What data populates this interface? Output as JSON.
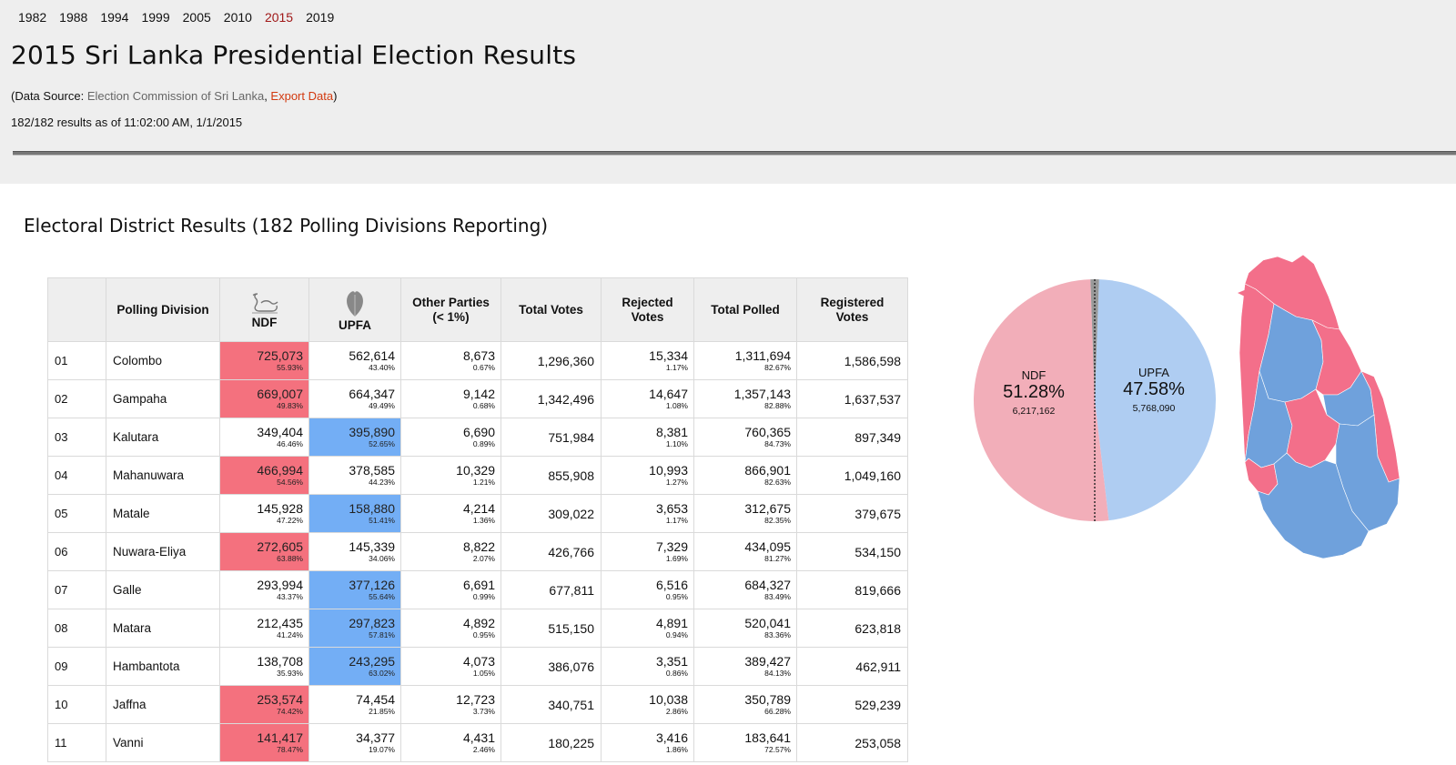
{
  "years": [
    {
      "label": "1982",
      "active": false
    },
    {
      "label": "1988",
      "active": false
    },
    {
      "label": "1994",
      "active": false
    },
    {
      "label": "1999",
      "active": false
    },
    {
      "label": "2005",
      "active": false
    },
    {
      "label": "2010",
      "active": false
    },
    {
      "label": "2015",
      "active": true
    },
    {
      "label": "2019",
      "active": false
    }
  ],
  "header": {
    "title": "2015 Sri Lanka Presidential Election Results",
    "source_prefix": "(Data Source: ",
    "source_link": "Election Commission of Sri Lanka",
    "source_sep": ", ",
    "export_link": "Export Data",
    "source_suffix": ")",
    "status": "182/182 results as of 11:02:00 AM, 1/1/2015"
  },
  "section_title": "Electoral District Results (182 Polling Divisions Reporting)",
  "colors": {
    "ndf_win": "#f4717e",
    "upfa_win": "#73aef5",
    "ndf_pie": "#f2aeb9",
    "upfa_pie": "#afcdf2",
    "ndf_map": "#f36f8a",
    "upfa_map": "#6fa1dc"
  },
  "table": {
    "headers": {
      "code": "",
      "division": "Polling Division",
      "ndf": "NDF",
      "upfa": "UPFA",
      "other": [
        "Other Parties",
        "(< 1%)"
      ],
      "total": "Total Votes",
      "rejected": [
        "Rejected",
        "Votes"
      ],
      "polled": "Total Polled",
      "registered": [
        "Registered",
        "Votes"
      ]
    },
    "icons": {
      "ndf": "swan-icon",
      "upfa": "betel-leaf-icon"
    },
    "rows": [
      {
        "code": "01",
        "name": "Colombo",
        "ndf": "725,073",
        "ndf_pct": "55.93%",
        "upfa": "562,614",
        "upfa_pct": "43.40%",
        "other": "8,673",
        "other_pct": "0.67%",
        "total": "1,296,360",
        "rejected": "15,334",
        "rejected_pct": "1.17%",
        "polled": "1,311,694",
        "polled_pct": "82.67%",
        "registered": "1,586,598",
        "winner": "ndf"
      },
      {
        "code": "02",
        "name": "Gampaha",
        "ndf": "669,007",
        "ndf_pct": "49.83%",
        "upfa": "664,347",
        "upfa_pct": "49.49%",
        "other": "9,142",
        "other_pct": "0.68%",
        "total": "1,342,496",
        "rejected": "14,647",
        "rejected_pct": "1.08%",
        "polled": "1,357,143",
        "polled_pct": "82.88%",
        "registered": "1,637,537",
        "winner": "ndf"
      },
      {
        "code": "03",
        "name": "Kalutara",
        "ndf": "349,404",
        "ndf_pct": "46.46%",
        "upfa": "395,890",
        "upfa_pct": "52.65%",
        "other": "6,690",
        "other_pct": "0.89%",
        "total": "751,984",
        "rejected": "8,381",
        "rejected_pct": "1.10%",
        "polled": "760,365",
        "polled_pct": "84.73%",
        "registered": "897,349",
        "winner": "upfa"
      },
      {
        "code": "04",
        "name": "Mahanuwara",
        "ndf": "466,994",
        "ndf_pct": "54.56%",
        "upfa": "378,585",
        "upfa_pct": "44.23%",
        "other": "10,329",
        "other_pct": "1.21%",
        "total": "855,908",
        "rejected": "10,993",
        "rejected_pct": "1.27%",
        "polled": "866,901",
        "polled_pct": "82.63%",
        "registered": "1,049,160",
        "winner": "ndf"
      },
      {
        "code": "05",
        "name": "Matale",
        "ndf": "145,928",
        "ndf_pct": "47.22%",
        "upfa": "158,880",
        "upfa_pct": "51.41%",
        "other": "4,214",
        "other_pct": "1.36%",
        "total": "309,022",
        "rejected": "3,653",
        "rejected_pct": "1.17%",
        "polled": "312,675",
        "polled_pct": "82.35%",
        "registered": "379,675",
        "winner": "upfa"
      },
      {
        "code": "06",
        "name": "Nuwara-Eliya",
        "ndf": "272,605",
        "ndf_pct": "63.88%",
        "upfa": "145,339",
        "upfa_pct": "34.06%",
        "other": "8,822",
        "other_pct": "2.07%",
        "total": "426,766",
        "rejected": "7,329",
        "rejected_pct": "1.69%",
        "polled": "434,095",
        "polled_pct": "81.27%",
        "registered": "534,150",
        "winner": "ndf"
      },
      {
        "code": "07",
        "name": "Galle",
        "ndf": "293,994",
        "ndf_pct": "43.37%",
        "upfa": "377,126",
        "upfa_pct": "55.64%",
        "other": "6,691",
        "other_pct": "0.99%",
        "total": "677,811",
        "rejected": "6,516",
        "rejected_pct": "0.95%",
        "polled": "684,327",
        "polled_pct": "83.49%",
        "registered": "819,666",
        "winner": "upfa"
      },
      {
        "code": "08",
        "name": "Matara",
        "ndf": "212,435",
        "ndf_pct": "41.24%",
        "upfa": "297,823",
        "upfa_pct": "57.81%",
        "other": "4,892",
        "other_pct": "0.95%",
        "total": "515,150",
        "rejected": "4,891",
        "rejected_pct": "0.94%",
        "polled": "520,041",
        "polled_pct": "83.36%",
        "registered": "623,818",
        "winner": "upfa"
      },
      {
        "code": "09",
        "name": "Hambantota",
        "ndf": "138,708",
        "ndf_pct": "35.93%",
        "upfa": "243,295",
        "upfa_pct": "63.02%",
        "other": "4,073",
        "other_pct": "1.05%",
        "total": "386,076",
        "rejected": "3,351",
        "rejected_pct": "0.86%",
        "polled": "389,427",
        "polled_pct": "84.13%",
        "registered": "462,911",
        "winner": "upfa"
      },
      {
        "code": "10",
        "name": "Jaffna",
        "ndf": "253,574",
        "ndf_pct": "74.42%",
        "upfa": "74,454",
        "upfa_pct": "21.85%",
        "other": "12,723",
        "other_pct": "3.73%",
        "total": "340,751",
        "rejected": "10,038",
        "rejected_pct": "2.86%",
        "polled": "350,789",
        "polled_pct": "66.28%",
        "registered": "529,239",
        "winner": "ndf"
      },
      {
        "code": "11",
        "name": "Vanni",
        "ndf": "141,417",
        "ndf_pct": "78.47%",
        "upfa": "34,377",
        "upfa_pct": "19.07%",
        "other": "4,431",
        "other_pct": "2.46%",
        "total": "180,225",
        "rejected": "3,416",
        "rejected_pct": "1.86%",
        "polled": "183,641",
        "polled_pct": "72.57%",
        "registered": "253,058",
        "winner": "ndf"
      }
    ]
  },
  "chart_data": {
    "type": "pie",
    "slices": [
      {
        "label": "NDF",
        "share": 51.28,
        "pct_label": "51.28%",
        "votes": "6,217,162",
        "color": "#f2aeb9"
      },
      {
        "label": "UPFA",
        "share": 47.58,
        "pct_label": "47.58%",
        "votes": "5,768,090",
        "color": "#afcdf2"
      },
      {
        "label": "",
        "share": 1.14,
        "pct_label": "",
        "votes": "",
        "color": "#999999"
      }
    ],
    "title": "",
    "majority_line": true
  }
}
